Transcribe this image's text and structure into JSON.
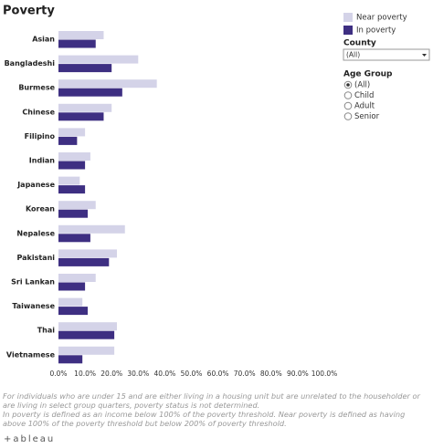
{
  "chart_data": {
    "type": "bar",
    "orientation": "horizontal",
    "title": "Poverty",
    "categories": [
      "Asian",
      "Bangladeshi",
      "Burmese",
      "Chinese",
      "Filipino",
      "Indian",
      "Japanese",
      "Korean",
      "Nepalese",
      "Pakistani",
      "Sri Lankan",
      "Taiwanese",
      "Thai",
      "Vietnamese"
    ],
    "series": [
      {
        "name": "Near poverty",
        "color": "#d4d3e8",
        "values": [
          17,
          30,
          37,
          20,
          10,
          12,
          8,
          14,
          25,
          22,
          14,
          9,
          22,
          21
        ]
      },
      {
        "name": "In poverty",
        "color": "#3e2f82",
        "values": [
          14,
          20,
          24,
          17,
          7,
          10,
          10,
          11,
          12,
          19,
          10,
          11,
          21,
          9
        ]
      }
    ],
    "xlim": [
      0,
      100
    ],
    "xticks": [
      {
        "value": 0,
        "label": "0.0%"
      },
      {
        "value": 10,
        "label": "10.0%"
      },
      {
        "value": 20,
        "label": "20.0%"
      },
      {
        "value": 30,
        "label": "30.0%"
      },
      {
        "value": 40,
        "label": "40.0%"
      },
      {
        "value": 50,
        "label": "50.0%"
      },
      {
        "value": 60,
        "label": "60.0%"
      },
      {
        "value": 70,
        "label": "70.0%"
      },
      {
        "value": 80,
        "label": "80.0%"
      },
      {
        "value": 90,
        "label": "90.0%"
      },
      {
        "value": 100,
        "label": "100.0%"
      }
    ],
    "grid": false
  },
  "filters": {
    "county": {
      "label": "County",
      "value": "(All)"
    },
    "age_group": {
      "label": "Age Group",
      "options": [
        "(All)",
        "Child",
        "Adult",
        "Senior"
      ],
      "selected": 0
    }
  },
  "notes": [
    "For individuals who are under 15 and are either living in a housing unit but are unrelated to the householder or are living in select group quarters, poverty status is not determined.",
    "In poverty is defined as an income below 100% of the poverty threshold. Near poverty is defined as having above 100% of the poverty threshold but below 200% of poverty threshold."
  ],
  "branding": "+ableau"
}
